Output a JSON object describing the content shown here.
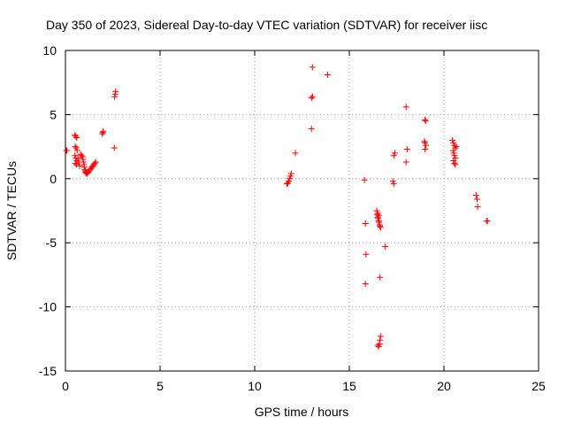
{
  "chart_data": {
    "type": "scatter",
    "title": "Day 350 of 2023, Sidereal Day-to-day VTEC variation (SDTVAR) for receiver iisc",
    "xlabel": "GPS time / hours",
    "ylabel": "SDTVAR / TECUs",
    "xlim": [
      0,
      25
    ],
    "ylim": [
      -15,
      10
    ],
    "xticks": [
      0,
      5,
      10,
      15,
      20,
      25
    ],
    "yticks": [
      -15,
      -10,
      -5,
      0,
      5,
      10
    ],
    "grid": true,
    "marker": "+",
    "color": "#ff0000",
    "series": [
      {
        "name": "SDTVAR",
        "points": [
          [
            0.05,
            2.2
          ],
          [
            0.08,
            2.2
          ],
          [
            0.5,
            3.4
          ],
          [
            0.55,
            3.3
          ],
          [
            0.6,
            3.2
          ],
          [
            0.52,
            2.5
          ],
          [
            0.57,
            2.4
          ],
          [
            0.62,
            2.2
          ],
          [
            0.5,
            1.8
          ],
          [
            0.55,
            1.6
          ],
          [
            0.6,
            1.4
          ],
          [
            0.52,
            1.2
          ],
          [
            0.58,
            1.1
          ],
          [
            0.66,
            1.6
          ],
          [
            0.7,
            1.3
          ],
          [
            0.75,
            1.0
          ],
          [
            0.8,
            1.9
          ],
          [
            0.85,
            1.8
          ],
          [
            0.9,
            1.7
          ],
          [
            0.93,
            1.5
          ],
          [
            0.95,
            1.3
          ],
          [
            0.98,
            1.1
          ],
          [
            1.0,
            0.9
          ],
          [
            1.02,
            0.7
          ],
          [
            1.05,
            0.6
          ],
          [
            1.07,
            0.5
          ],
          [
            1.1,
            0.45
          ],
          [
            1.13,
            0.4
          ],
          [
            1.16,
            0.45
          ],
          [
            1.2,
            0.5
          ],
          [
            1.25,
            0.6
          ],
          [
            1.3,
            0.7
          ],
          [
            1.35,
            0.8
          ],
          [
            1.4,
            0.9
          ],
          [
            1.45,
            1.0
          ],
          [
            1.5,
            1.1
          ],
          [
            1.55,
            1.2
          ],
          [
            1.6,
            1.3
          ],
          [
            1.95,
            3.5
          ],
          [
            1.98,
            3.6
          ],
          [
            2.0,
            3.7
          ],
          [
            2.6,
            6.4
          ],
          [
            2.63,
            6.6
          ],
          [
            2.65,
            6.8
          ],
          [
            2.58,
            2.4
          ],
          [
            11.7,
            -0.4
          ],
          [
            11.75,
            -0.35
          ],
          [
            11.8,
            -0.2
          ],
          [
            11.85,
            0.0
          ],
          [
            11.9,
            0.2
          ],
          [
            11.93,
            0.4
          ],
          [
            12.15,
            2.0
          ],
          [
            13.0,
            6.3
          ],
          [
            13.05,
            6.4
          ],
          [
            13.0,
            3.9
          ],
          [
            13.05,
            8.7
          ],
          [
            13.85,
            8.1
          ],
          [
            15.8,
            -0.1
          ],
          [
            15.85,
            -3.5
          ],
          [
            15.88,
            -5.9
          ],
          [
            15.85,
            -8.2
          ],
          [
            16.45,
            -2.5
          ],
          [
            16.48,
            -2.8
          ],
          [
            16.5,
            -3.0
          ],
          [
            16.52,
            -3.1
          ],
          [
            16.55,
            -3.3
          ],
          [
            16.57,
            -3.4
          ],
          [
            16.6,
            -3.6
          ],
          [
            16.62,
            -3.7
          ],
          [
            16.65,
            -3.8
          ],
          [
            16.5,
            -2.7
          ],
          [
            16.55,
            -2.9
          ],
          [
            16.62,
            -7.7
          ],
          [
            16.5,
            -13.0
          ],
          [
            16.55,
            -13.1
          ],
          [
            16.6,
            -12.9
          ],
          [
            16.62,
            -12.6
          ],
          [
            16.65,
            -12.3
          ],
          [
            16.9,
            -5.3
          ],
          [
            17.3,
            -0.2
          ],
          [
            17.35,
            -0.4
          ],
          [
            17.35,
            1.8
          ],
          [
            17.4,
            2.0
          ],
          [
            18.0,
            5.6
          ],
          [
            18.05,
            2.3
          ],
          [
            18.0,
            1.3
          ],
          [
            19.0,
            4.6
          ],
          [
            19.03,
            4.5
          ],
          [
            18.97,
            2.9
          ],
          [
            19.0,
            2.8
          ],
          [
            19.05,
            2.6
          ],
          [
            19.0,
            2.3
          ],
          [
            20.45,
            3.0
          ],
          [
            20.5,
            2.8
          ],
          [
            20.55,
            2.6
          ],
          [
            20.6,
            2.4
          ],
          [
            20.48,
            2.2
          ],
          [
            20.52,
            2.0
          ],
          [
            20.55,
            1.8
          ],
          [
            20.6,
            1.6
          ],
          [
            20.5,
            1.4
          ],
          [
            20.55,
            1.2
          ],
          [
            20.6,
            1.1
          ],
          [
            20.65,
            2.5
          ],
          [
            21.7,
            -1.3
          ],
          [
            21.75,
            -1.6
          ],
          [
            21.78,
            -2.2
          ],
          [
            22.25,
            -3.3
          ],
          [
            22.3,
            -3.3
          ]
        ]
      }
    ]
  }
}
